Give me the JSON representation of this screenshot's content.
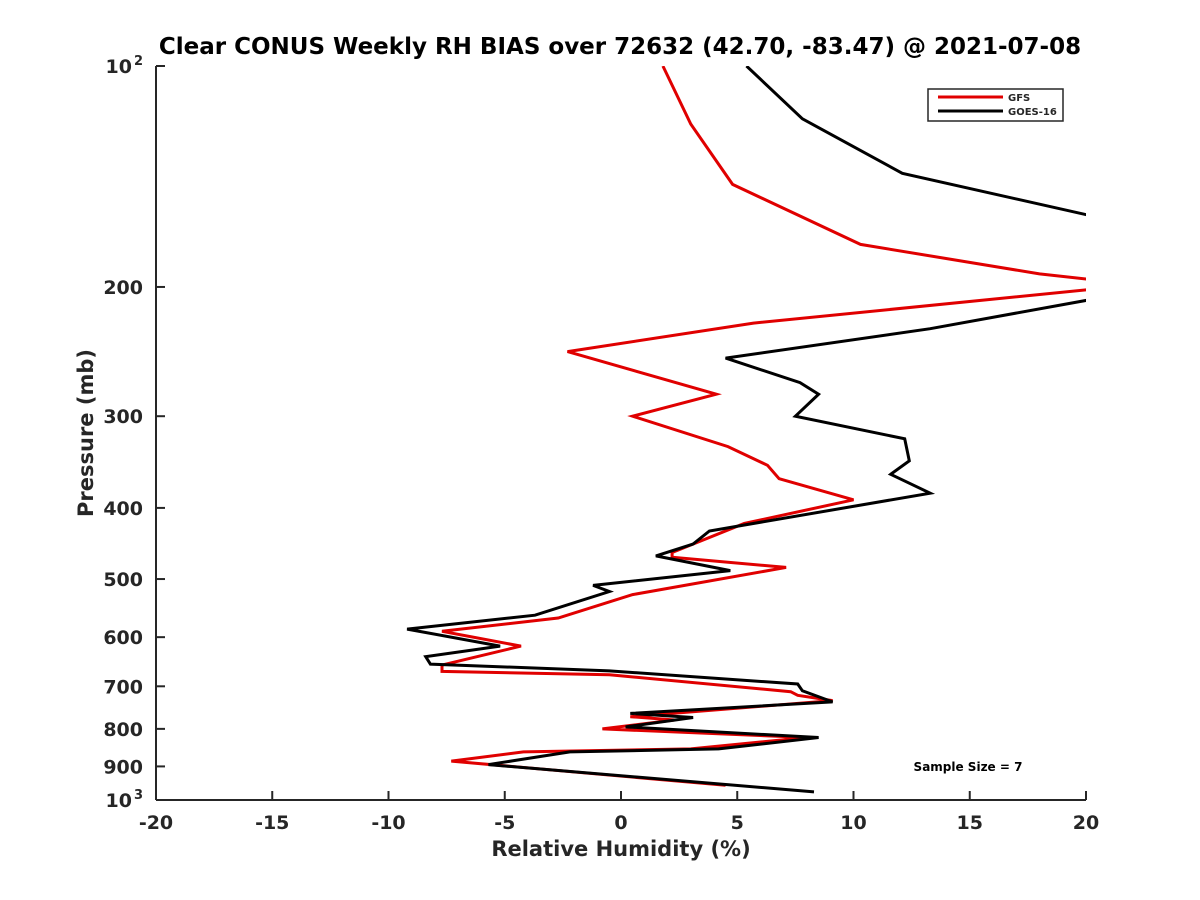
{
  "chart_data": {
    "type": "line",
    "title": "Clear CONUS Weekly RH BIAS over 72632 (42.70, -83.47) @ 2021-07-08",
    "xlabel": "Relative Humidity (%)",
    "ylabel": "Pressure (mb)",
    "xlim": [
      -20,
      20
    ],
    "ylim": [
      100,
      1000
    ],
    "y_scale": "log",
    "y_reversed": true,
    "grid": false,
    "legend_position": "top-right",
    "x_ticks": [
      "-20",
      "-15",
      "-10",
      "-5",
      "0",
      "5",
      "10",
      "15",
      "20"
    ],
    "y_ticks": [
      {
        "value": 100,
        "base": "10",
        "exp": "2"
      },
      {
        "value": 200,
        "label": "200"
      },
      {
        "value": 300,
        "label": "300"
      },
      {
        "value": 400,
        "label": "400"
      },
      {
        "value": 500,
        "label": "500"
      },
      {
        "value": 600,
        "label": "600"
      },
      {
        "value": 700,
        "label": "700"
      },
      {
        "value": 800,
        "label": "800"
      },
      {
        "value": 900,
        "label": "900"
      },
      {
        "value": 1000,
        "base": "10",
        "exp": "3"
      }
    ],
    "annotation": "Sample Size = 7",
    "series": [
      {
        "name": "GFS",
        "color": "#e00000",
        "points": [
          [
            1.8,
            100
          ],
          [
            3.0,
            120
          ],
          [
            4.8,
            145
          ],
          [
            10.3,
            175
          ],
          [
            18.0,
            192
          ],
          [
            20.6,
            196
          ],
          [
            20.6,
            201
          ],
          [
            5.7,
            224
          ],
          [
            -2.3,
            245
          ],
          [
            4.1,
            280
          ],
          [
            0.5,
            300
          ],
          [
            4.6,
            330
          ],
          [
            6.3,
            350
          ],
          [
            6.8,
            365
          ],
          [
            10.0,
            390
          ],
          [
            5.3,
            420
          ],
          [
            2.2,
            460
          ],
          [
            2.2,
            467
          ],
          [
            7.1,
            482
          ],
          [
            0.5,
            525
          ],
          [
            -2.7,
            565
          ],
          [
            -7.7,
            589
          ],
          [
            -4.3,
            617
          ],
          [
            -7.7,
            655
          ],
          [
            -7.7,
            668
          ],
          [
            -0.5,
            675
          ],
          [
            7.3,
            712
          ],
          [
            7.6,
            720
          ],
          [
            9.1,
            732
          ],
          [
            0.4,
            770
          ],
          [
            2.3,
            778
          ],
          [
            -0.8,
            800
          ],
          [
            8.0,
            822
          ],
          [
            3.0,
            852
          ],
          [
            -4.2,
            860
          ],
          [
            -7.3,
            885
          ],
          [
            4.5,
            955
          ]
        ]
      },
      {
        "name": "GOES-16",
        "color": "#000000",
        "points": [
          [
            5.4,
            100
          ],
          [
            7.8,
            118
          ],
          [
            12.1,
            140
          ],
          [
            20.6,
            161
          ],
          [
            20.6,
            207
          ],
          [
            13.3,
            228
          ],
          [
            4.5,
            250
          ],
          [
            7.7,
            270
          ],
          [
            8.5,
            280
          ],
          [
            7.5,
            300
          ],
          [
            12.2,
            322
          ],
          [
            12.4,
            345
          ],
          [
            11.6,
            360
          ],
          [
            13.3,
            382
          ],
          [
            3.8,
            430
          ],
          [
            3.1,
            448
          ],
          [
            1.5,
            465
          ],
          [
            4.7,
            487
          ],
          [
            -1.2,
            510
          ],
          [
            -0.5,
            520
          ],
          [
            -3.7,
            560
          ],
          [
            -9.2,
            585
          ],
          [
            -5.2,
            617
          ],
          [
            -8.4,
            638
          ],
          [
            -8.2,
            653
          ],
          [
            -0.5,
            667
          ],
          [
            7.6,
            695
          ],
          [
            7.8,
            710
          ],
          [
            9.1,
            735
          ],
          [
            0.4,
            762
          ],
          [
            3.1,
            772
          ],
          [
            0.2,
            795
          ],
          [
            8.5,
            822
          ],
          [
            4.2,
            852
          ],
          [
            -2.2,
            860
          ],
          [
            -5.7,
            895
          ],
          [
            8.3,
            975
          ]
        ]
      }
    ]
  }
}
